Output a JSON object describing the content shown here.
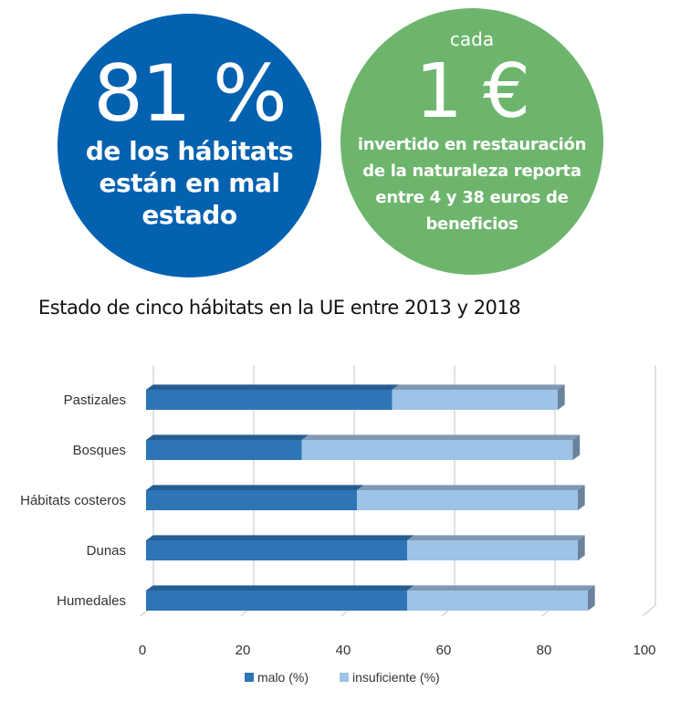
{
  "stats": {
    "habitats": {
      "value": "81 %",
      "description_lines": [
        "de los hábitats",
        "están en mal",
        "estado"
      ],
      "color": "#0461b0"
    },
    "restoration": {
      "prefix": "cada",
      "value": "1 €",
      "description_lines": [
        "invertido en restauración",
        "de la naturaleza reporta",
        "entre 4 y 38 euros de",
        "beneficios"
      ],
      "color": "#6db56d"
    }
  },
  "chart_data": {
    "type": "bar",
    "orientation": "horizontal",
    "stacked": true,
    "style": "3d",
    "title": "Estado de cinco hábitats en la UE entre 2013 y 2018",
    "categories": [
      "Pastizales",
      "Bosques",
      "Hábitats costeros",
      "Dunas",
      "Humedales"
    ],
    "series": [
      {
        "name": "malo (%)",
        "values": [
          49,
          31,
          42,
          52,
          52
        ],
        "color": "#2e75b6"
      },
      {
        "name": "insuficiente (%)",
        "values": [
          33,
          54,
          44,
          34,
          36
        ],
        "color": "#9dc3e6"
      }
    ],
    "xlabel": "",
    "ylabel": "",
    "xlim": [
      0,
      100
    ],
    "x_ticks": [
      "0",
      "20",
      "40",
      "60",
      "80",
      "100"
    ],
    "grid": true,
    "legend": "bottom"
  }
}
